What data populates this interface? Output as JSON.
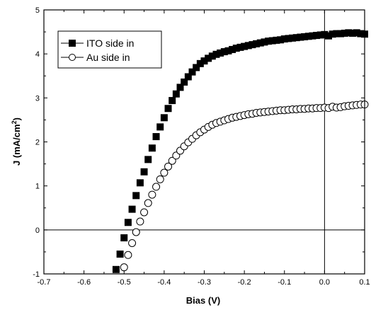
{
  "chart_data": {
    "type": "scatter",
    "xlabel": "Bias (V)",
    "ylabel_main": "J (mA/cm",
    "ylabel_sup": "2",
    "ylabel_tail": ")",
    "xlim": [
      -0.7,
      0.1
    ],
    "ylim": [
      -1,
      5
    ],
    "x_ticks": [
      "-0.7",
      "-0.6",
      "-0.5",
      "-0.4",
      "-0.3",
      "-0.2",
      "-0.1",
      "0.0",
      "0.1"
    ],
    "y_ticks": [
      "-1",
      "0",
      "1",
      "2",
      "3",
      "4",
      "5"
    ],
    "reference_lines": {
      "y": 0,
      "x": 0
    },
    "legend_position": "top-left",
    "series": [
      {
        "name": "ITO side in",
        "marker": "filled-square",
        "x": [
          -0.52,
          -0.51,
          -0.5,
          -0.49,
          -0.48,
          -0.47,
          -0.46,
          -0.45,
          -0.44,
          -0.43,
          -0.42,
          -0.41,
          -0.4,
          -0.39,
          -0.38,
          -0.37,
          -0.36,
          -0.35,
          -0.34,
          -0.33,
          -0.32,
          -0.31,
          -0.3,
          -0.29,
          -0.28,
          -0.27,
          -0.26,
          -0.25,
          -0.24,
          -0.23,
          -0.22,
          -0.21,
          -0.2,
          -0.19,
          -0.18,
          -0.17,
          -0.16,
          -0.15,
          -0.14,
          -0.13,
          -0.12,
          -0.11,
          -0.1,
          -0.09,
          -0.08,
          -0.07,
          -0.06,
          -0.05,
          -0.04,
          -0.03,
          -0.02,
          -0.01,
          0.0,
          0.01,
          0.02,
          0.03,
          0.04,
          0.05,
          0.06,
          0.07,
          0.08,
          0.09,
          0.1
        ],
        "y": [
          -0.9,
          -0.55,
          -0.18,
          0.17,
          0.47,
          0.78,
          1.07,
          1.32,
          1.6,
          1.86,
          2.12,
          2.34,
          2.55,
          2.76,
          2.94,
          3.09,
          3.24,
          3.36,
          3.48,
          3.59,
          3.69,
          3.78,
          3.84,
          3.9,
          3.95,
          3.99,
          4.02,
          4.05,
          4.07,
          4.1,
          4.13,
          4.15,
          4.17,
          4.19,
          4.21,
          4.23,
          4.25,
          4.27,
          4.29,
          4.3,
          4.31,
          4.32,
          4.34,
          4.35,
          4.36,
          4.37,
          4.38,
          4.39,
          4.4,
          4.41,
          4.42,
          4.43,
          4.44,
          4.41,
          4.45,
          4.46,
          4.46,
          4.47,
          4.48,
          4.47,
          4.48,
          4.46,
          4.45
        ]
      },
      {
        "name": "Au side in",
        "marker": "open-circle",
        "x": [
          -0.5,
          -0.49,
          -0.48,
          -0.47,
          -0.46,
          -0.45,
          -0.44,
          -0.43,
          -0.42,
          -0.41,
          -0.4,
          -0.39,
          -0.38,
          -0.37,
          -0.36,
          -0.35,
          -0.34,
          -0.33,
          -0.32,
          -0.31,
          -0.3,
          -0.29,
          -0.28,
          -0.27,
          -0.26,
          -0.25,
          -0.24,
          -0.23,
          -0.22,
          -0.21,
          -0.2,
          -0.19,
          -0.18,
          -0.17,
          -0.16,
          -0.15,
          -0.14,
          -0.13,
          -0.12,
          -0.11,
          -0.1,
          -0.09,
          -0.08,
          -0.07,
          -0.06,
          -0.05,
          -0.04,
          -0.03,
          -0.02,
          -0.01,
          0.0,
          0.01,
          0.02,
          0.03,
          0.04,
          0.05,
          0.06,
          0.07,
          0.08,
          0.09,
          0.1
        ],
        "y": [
          -0.85,
          -0.57,
          -0.3,
          -0.05,
          0.19,
          0.4,
          0.61,
          0.8,
          0.98,
          1.15,
          1.3,
          1.44,
          1.57,
          1.69,
          1.8,
          1.9,
          1.99,
          2.07,
          2.15,
          2.22,
          2.28,
          2.34,
          2.39,
          2.43,
          2.46,
          2.49,
          2.52,
          2.55,
          2.57,
          2.59,
          2.61,
          2.63,
          2.64,
          2.66,
          2.67,
          2.68,
          2.69,
          2.7,
          2.71,
          2.72,
          2.72,
          2.73,
          2.74,
          2.74,
          2.75,
          2.75,
          2.76,
          2.76,
          2.77,
          2.77,
          2.78,
          2.77,
          2.8,
          2.78,
          2.79,
          2.81,
          2.82,
          2.83,
          2.84,
          2.85,
          2.85
        ]
      }
    ]
  }
}
